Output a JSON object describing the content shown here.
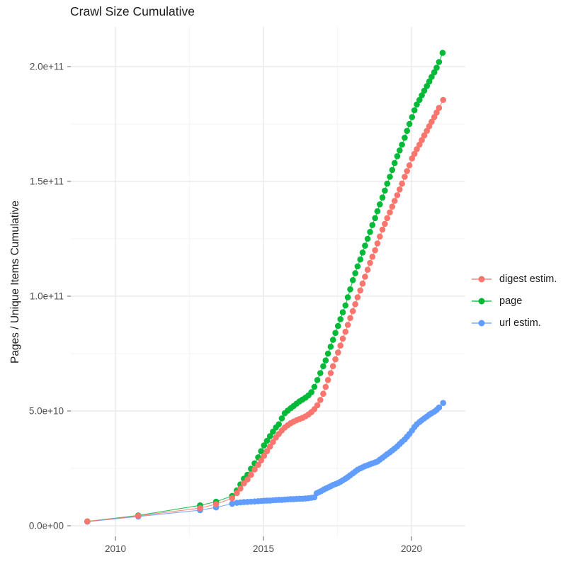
{
  "title": "Crawl Size Cumulative",
  "axes": {
    "y_title": "Pages / Unique Items Cumulative",
    "x_major_ticks": [
      {
        "year": 2010,
        "label": "2010"
      },
      {
        "year": 2015,
        "label": "2015"
      },
      {
        "year": 2020,
        "label": "2020"
      }
    ],
    "x_minor_ticks": [
      2012.5,
      2017.5
    ],
    "y_major_ticks": [
      {
        "value": 0,
        "label": "0.0e+00"
      },
      {
        "value": 5,
        "label": "5.0e+10"
      },
      {
        "value": 10,
        "label": "1.0e+11"
      },
      {
        "value": 15,
        "label": "1.5e+11"
      },
      {
        "value": 20,
        "label": "2.0e+11"
      }
    ],
    "y_minor_ticks": [
      2.5,
      7.5,
      12.5,
      17.5
    ]
  },
  "legend": {
    "items": [
      {
        "label": "digest estim.",
        "color": "#F8766D"
      },
      {
        "label": "page",
        "color": "#00BA38"
      },
      {
        "label": "url estim.",
        "color": "#619CFF"
      }
    ]
  },
  "colors": {
    "grid_major": "#EBEBEB",
    "grid_minor": "#F5F5F5",
    "tick": "#666666",
    "tick_label": "#4D4D4D",
    "title": "#1A1A1A"
  },
  "chart_data": {
    "type": "scatter",
    "title": "Crawl Size Cumulative",
    "xlabel": "",
    "ylabel": "Pages / Unique Items Cumulative",
    "x_range": [
      2008.5,
      2021.8
    ],
    "y_range": [
      0,
      215000000000
    ],
    "grid": true,
    "legend_position": "right",
    "value_unit": 10000000000,
    "unit_note": "point y values are in multiples of 1e10 pages/items; x is decimal year",
    "series": [
      {
        "name": "digest estim.",
        "color": "#F8766D",
        "points": [
          [
            2009.05,
            0.19
          ],
          [
            2010.77,
            0.43
          ],
          [
            2012.86,
            0.77
          ],
          [
            2013.4,
            0.94
          ],
          [
            2013.94,
            1.2
          ],
          [
            2014.1,
            1.42
          ],
          [
            2014.22,
            1.62
          ],
          [
            2014.34,
            1.85
          ],
          [
            2014.46,
            2.02
          ],
          [
            2014.58,
            2.22
          ],
          [
            2014.7,
            2.45
          ],
          [
            2014.82,
            2.65
          ],
          [
            2014.92,
            2.85
          ],
          [
            2015.02,
            3.05
          ],
          [
            2015.12,
            3.25
          ],
          [
            2015.22,
            3.45
          ],
          [
            2015.32,
            3.65
          ],
          [
            2015.42,
            3.85
          ],
          [
            2015.52,
            4.0
          ],
          [
            2015.62,
            4.15
          ],
          [
            2015.72,
            4.28
          ],
          [
            2015.82,
            4.38
          ],
          [
            2015.92,
            4.47
          ],
          [
            2016.02,
            4.54
          ],
          [
            2016.12,
            4.6
          ],
          [
            2016.22,
            4.65
          ],
          [
            2016.32,
            4.7
          ],
          [
            2016.42,
            4.77
          ],
          [
            2016.52,
            4.85
          ],
          [
            2016.62,
            4.95
          ],
          [
            2016.72,
            5.08
          ],
          [
            2016.82,
            5.25
          ],
          [
            2016.92,
            5.48
          ],
          [
            2017.02,
            5.75
          ],
          [
            2017.1,
            6.05
          ],
          [
            2017.18,
            6.35
          ],
          [
            2017.27,
            6.65
          ],
          [
            2017.35,
            6.95
          ],
          [
            2017.43,
            7.25
          ],
          [
            2017.52,
            7.55
          ],
          [
            2017.6,
            7.85
          ],
          [
            2017.68,
            8.15
          ],
          [
            2017.77,
            8.45
          ],
          [
            2017.85,
            8.75
          ],
          [
            2017.93,
            9.05
          ],
          [
            2018.02,
            9.35
          ],
          [
            2018.1,
            9.65
          ],
          [
            2018.18,
            9.95
          ],
          [
            2018.27,
            10.25
          ],
          [
            2018.35,
            10.55
          ],
          [
            2018.43,
            10.85
          ],
          [
            2018.52,
            11.15
          ],
          [
            2018.6,
            11.45
          ],
          [
            2018.68,
            11.72
          ],
          [
            2018.77,
            12.0
          ],
          [
            2018.85,
            12.3
          ],
          [
            2018.93,
            12.6
          ],
          [
            2019.02,
            12.9
          ],
          [
            2019.1,
            13.15
          ],
          [
            2019.18,
            13.4
          ],
          [
            2019.27,
            13.65
          ],
          [
            2019.35,
            13.9
          ],
          [
            2019.43,
            14.15
          ],
          [
            2019.52,
            14.4
          ],
          [
            2019.6,
            14.65
          ],
          [
            2019.68,
            14.9
          ],
          [
            2019.77,
            15.2
          ],
          [
            2019.85,
            15.45
          ],
          [
            2019.93,
            15.7
          ],
          [
            2020.02,
            16.0
          ],
          [
            2020.1,
            16.2
          ],
          [
            2020.18,
            16.4
          ],
          [
            2020.27,
            16.6
          ],
          [
            2020.35,
            16.8
          ],
          [
            2020.43,
            17.0
          ],
          [
            2020.52,
            17.2
          ],
          [
            2020.6,
            17.4
          ],
          [
            2020.68,
            17.6
          ],
          [
            2020.77,
            17.8
          ],
          [
            2020.85,
            18.0
          ],
          [
            2020.93,
            18.2
          ],
          [
            2021.07,
            18.55
          ]
        ]
      },
      {
        "name": "page",
        "color": "#00BA38",
        "points": [
          [
            2009.05,
            0.19
          ],
          [
            2010.77,
            0.45
          ],
          [
            2012.86,
            0.89
          ],
          [
            2013.4,
            1.05
          ],
          [
            2013.94,
            1.3
          ],
          [
            2014.1,
            1.54
          ],
          [
            2014.22,
            1.8
          ],
          [
            2014.34,
            2.05
          ],
          [
            2014.46,
            2.22
          ],
          [
            2014.58,
            2.48
          ],
          [
            2014.7,
            2.72
          ],
          [
            2014.82,
            2.98
          ],
          [
            2014.92,
            3.25
          ],
          [
            2015.02,
            3.5
          ],
          [
            2015.12,
            3.7
          ],
          [
            2015.22,
            3.9
          ],
          [
            2015.32,
            4.1
          ],
          [
            2015.42,
            4.28
          ],
          [
            2015.52,
            4.42
          ],
          [
            2015.62,
            4.68
          ],
          [
            2015.72,
            4.9
          ],
          [
            2015.82,
            5.02
          ],
          [
            2015.92,
            5.12
          ],
          [
            2016.02,
            5.22
          ],
          [
            2016.12,
            5.32
          ],
          [
            2016.22,
            5.42
          ],
          [
            2016.32,
            5.5
          ],
          [
            2016.42,
            5.58
          ],
          [
            2016.52,
            5.68
          ],
          [
            2016.62,
            5.82
          ],
          [
            2016.72,
            6.05
          ],
          [
            2016.82,
            6.35
          ],
          [
            2016.92,
            6.65
          ],
          [
            2017.02,
            6.95
          ],
          [
            2017.1,
            7.2
          ],
          [
            2017.18,
            7.5
          ],
          [
            2017.27,
            7.8
          ],
          [
            2017.35,
            8.1
          ],
          [
            2017.43,
            8.4
          ],
          [
            2017.52,
            8.7
          ],
          [
            2017.6,
            9.0
          ],
          [
            2017.68,
            9.3
          ],
          [
            2017.77,
            9.6
          ],
          [
            2017.85,
            9.95
          ],
          [
            2017.93,
            10.3
          ],
          [
            2018.02,
            10.7
          ],
          [
            2018.1,
            11.0
          ],
          [
            2018.18,
            11.3
          ],
          [
            2018.27,
            11.6
          ],
          [
            2018.35,
            11.9
          ],
          [
            2018.43,
            12.2
          ],
          [
            2018.52,
            12.5
          ],
          [
            2018.6,
            12.8
          ],
          [
            2018.68,
            13.1
          ],
          [
            2018.77,
            13.4
          ],
          [
            2018.85,
            13.7
          ],
          [
            2018.93,
            14.0
          ],
          [
            2019.02,
            14.3
          ],
          [
            2019.1,
            14.6
          ],
          [
            2019.18,
            14.9
          ],
          [
            2019.27,
            15.2
          ],
          [
            2019.35,
            15.5
          ],
          [
            2019.43,
            15.8
          ],
          [
            2019.52,
            16.1
          ],
          [
            2019.6,
            16.35
          ],
          [
            2019.68,
            16.6
          ],
          [
            2019.77,
            16.9
          ],
          [
            2019.85,
            17.2
          ],
          [
            2019.93,
            17.5
          ],
          [
            2020.02,
            17.8
          ],
          [
            2020.1,
            18.1
          ],
          [
            2020.18,
            18.35
          ],
          [
            2020.27,
            18.55
          ],
          [
            2020.35,
            18.75
          ],
          [
            2020.43,
            18.95
          ],
          [
            2020.52,
            19.15
          ],
          [
            2020.6,
            19.35
          ],
          [
            2020.68,
            19.55
          ],
          [
            2020.77,
            19.75
          ],
          [
            2020.85,
            19.95
          ],
          [
            2020.93,
            20.2
          ],
          [
            2021.05,
            20.6
          ]
        ]
      },
      {
        "name": "url estim.",
        "color": "#619CFF",
        "points": [
          [
            2009.05,
            0.18
          ],
          [
            2010.77,
            0.4
          ],
          [
            2012.86,
            0.68
          ],
          [
            2013.4,
            0.8
          ],
          [
            2013.94,
            0.96
          ],
          [
            2014.1,
            1.0
          ],
          [
            2014.22,
            1.02
          ],
          [
            2014.34,
            1.03
          ],
          [
            2014.46,
            1.04
          ],
          [
            2014.58,
            1.05
          ],
          [
            2014.7,
            1.06
          ],
          [
            2014.82,
            1.07
          ],
          [
            2014.92,
            1.08
          ],
          [
            2015.02,
            1.09
          ],
          [
            2015.12,
            1.1
          ],
          [
            2015.22,
            1.1
          ],
          [
            2015.32,
            1.11
          ],
          [
            2015.42,
            1.12
          ],
          [
            2015.52,
            1.13
          ],
          [
            2015.62,
            1.13
          ],
          [
            2015.72,
            1.14
          ],
          [
            2015.82,
            1.15
          ],
          [
            2015.92,
            1.16
          ],
          [
            2016.02,
            1.16
          ],
          [
            2016.12,
            1.17
          ],
          [
            2016.22,
            1.18
          ],
          [
            2016.32,
            1.18
          ],
          [
            2016.42,
            1.19
          ],
          [
            2016.52,
            1.2
          ],
          [
            2016.62,
            1.22
          ],
          [
            2016.72,
            1.24
          ],
          [
            2016.8,
            1.42
          ],
          [
            2016.88,
            1.47
          ],
          [
            2016.96,
            1.52
          ],
          [
            2017.04,
            1.58
          ],
          [
            2017.12,
            1.63
          ],
          [
            2017.2,
            1.68
          ],
          [
            2017.28,
            1.73
          ],
          [
            2017.36,
            1.78
          ],
          [
            2017.44,
            1.82
          ],
          [
            2017.52,
            1.86
          ],
          [
            2017.6,
            1.92
          ],
          [
            2017.68,
            1.98
          ],
          [
            2017.77,
            2.05
          ],
          [
            2017.85,
            2.12
          ],
          [
            2017.93,
            2.2
          ],
          [
            2018.02,
            2.28
          ],
          [
            2018.1,
            2.36
          ],
          [
            2018.18,
            2.44
          ],
          [
            2018.27,
            2.5
          ],
          [
            2018.35,
            2.55
          ],
          [
            2018.43,
            2.6
          ],
          [
            2018.52,
            2.64
          ],
          [
            2018.6,
            2.68
          ],
          [
            2018.68,
            2.72
          ],
          [
            2018.77,
            2.76
          ],
          [
            2018.85,
            2.8
          ],
          [
            2018.93,
            2.88
          ],
          [
            2019.02,
            2.96
          ],
          [
            2019.1,
            3.04
          ],
          [
            2019.18,
            3.12
          ],
          [
            2019.27,
            3.2
          ],
          [
            2019.35,
            3.28
          ],
          [
            2019.43,
            3.36
          ],
          [
            2019.52,
            3.46
          ],
          [
            2019.6,
            3.56
          ],
          [
            2019.68,
            3.66
          ],
          [
            2019.77,
            3.76
          ],
          [
            2019.85,
            3.88
          ],
          [
            2019.93,
            4.0
          ],
          [
            2020.02,
            4.15
          ],
          [
            2020.1,
            4.3
          ],
          [
            2020.18,
            4.42
          ],
          [
            2020.27,
            4.52
          ],
          [
            2020.35,
            4.6
          ],
          [
            2020.43,
            4.68
          ],
          [
            2020.52,
            4.76
          ],
          [
            2020.6,
            4.84
          ],
          [
            2020.68,
            4.9
          ],
          [
            2020.77,
            4.97
          ],
          [
            2020.85,
            5.05
          ],
          [
            2020.93,
            5.15
          ],
          [
            2021.07,
            5.35
          ]
        ]
      }
    ]
  }
}
